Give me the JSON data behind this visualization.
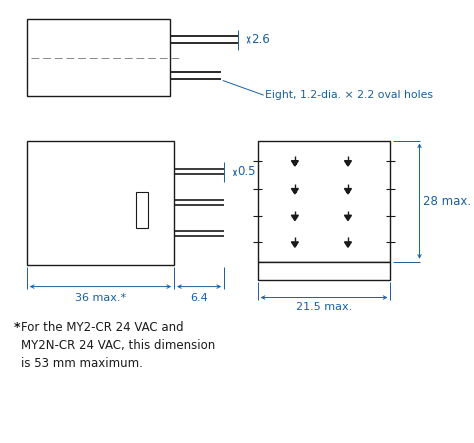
{
  "bg_color": "#ffffff",
  "line_color": "#1a1a1a",
  "dim_color": "#1a5fa0",
  "note_color": "#1a1a1a",
  "footnote": "  For the MY2-CR 24 VAC and\n  MY2N-CR 24 VAC, this dimension\n  is 53 mm maximum.",
  "note_oval": "Eight, 1.2-dia. × 2.2 oval holes",
  "dim_26": "2.6",
  "dim_05": "0.5",
  "dim_64": "6.4",
  "dim_36": "36 max.*",
  "dim_28": "28 max.",
  "dim_215": "21.5 max."
}
